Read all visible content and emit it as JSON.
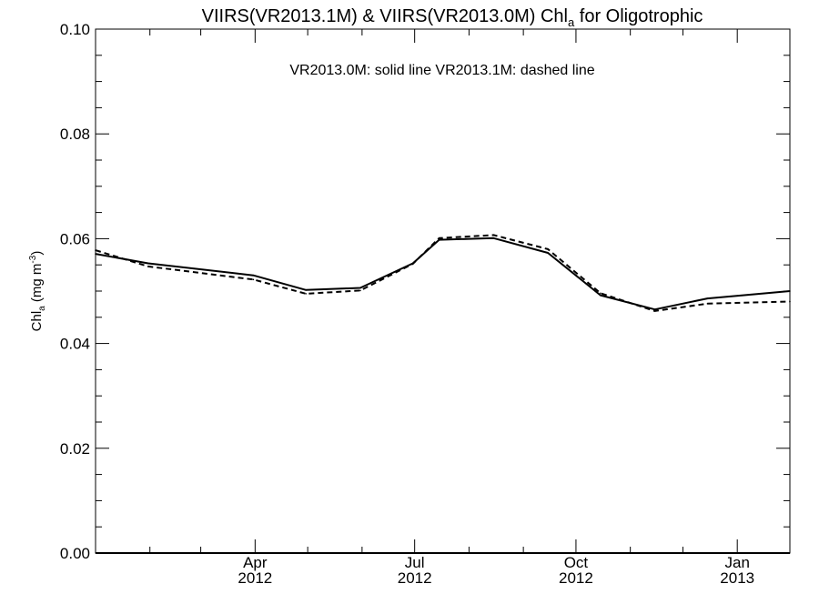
{
  "chart_data": {
    "type": "line",
    "title": {
      "prefix": "VIIRS(VR2013.1M) & VIIRS(VR2013.0M)  Chl",
      "subscript": "a",
      "suffix": " for Oligotrophic"
    },
    "legend_note": "VR2013.0M: solid line   VR2013.1M: dashed line",
    "ylabel": {
      "prefix": "Chl",
      "subscript": "a",
      "unit_prefix": " (mg m",
      "unit_superscript": "-3",
      "unit_suffix": ")"
    },
    "xlim": [
      "2012-01-01",
      "2013-01-31"
    ],
    "ylim": [
      0.0,
      0.1
    ],
    "y_ticks": [
      {
        "value": 0.0,
        "label": "0.00"
      },
      {
        "value": 0.02,
        "label": "0.02"
      },
      {
        "value": 0.04,
        "label": "0.04"
      },
      {
        "value": 0.06,
        "label": "0.06"
      },
      {
        "value": 0.08,
        "label": "0.08"
      },
      {
        "value": 0.1,
        "label": "0.10"
      }
    ],
    "y_minor_step": 0.005,
    "x_ticks": [
      {
        "date": "2012-04-01",
        "month": "Apr",
        "year": "2012"
      },
      {
        "date": "2012-07-01",
        "month": "Jul",
        "year": "2012"
      },
      {
        "date": "2012-10-01",
        "month": "Oct",
        "year": "2012"
      },
      {
        "date": "2013-01-01",
        "month": "Jan",
        "year": "2013"
      }
    ],
    "x_minor_ticks": [
      "2012-02-01",
      "2012-03-01",
      "2012-05-01",
      "2012-06-01",
      "2012-08-01",
      "2012-09-01",
      "2012-11-01",
      "2012-12-01"
    ],
    "series": [
      {
        "style": "solid",
        "x": [
          "2012-01-01",
          "2012-01-31",
          "2012-03-31",
          "2012-04-30",
          "2012-05-31",
          "2012-06-30",
          "2012-07-15",
          "2012-08-15",
          "2012-09-15",
          "2012-10-15",
          "2012-11-15",
          "2012-12-15",
          "2013-01-31"
        ],
        "values": [
          0.0571,
          0.0553,
          0.053,
          0.0502,
          0.0506,
          0.0553,
          0.0598,
          0.0601,
          0.0573,
          0.0492,
          0.0465,
          0.0486,
          0.05
        ]
      },
      {
        "style": "dashed",
        "x": [
          "2012-01-01",
          "2012-01-31",
          "2012-03-31",
          "2012-04-30",
          "2012-05-31",
          "2012-06-30",
          "2012-07-15",
          "2012-08-15",
          "2012-09-15",
          "2012-10-15",
          "2012-11-15",
          "2012-12-15",
          "2013-01-31"
        ],
        "values": [
          0.0578,
          0.0547,
          0.0522,
          0.0495,
          0.0501,
          0.0552,
          0.0601,
          0.0607,
          0.058,
          0.0496,
          0.0462,
          0.0476,
          0.048
        ]
      }
    ],
    "grid": false,
    "colors": {
      "line": "#000000",
      "axis": "#000000",
      "background": "#ffffff"
    }
  }
}
